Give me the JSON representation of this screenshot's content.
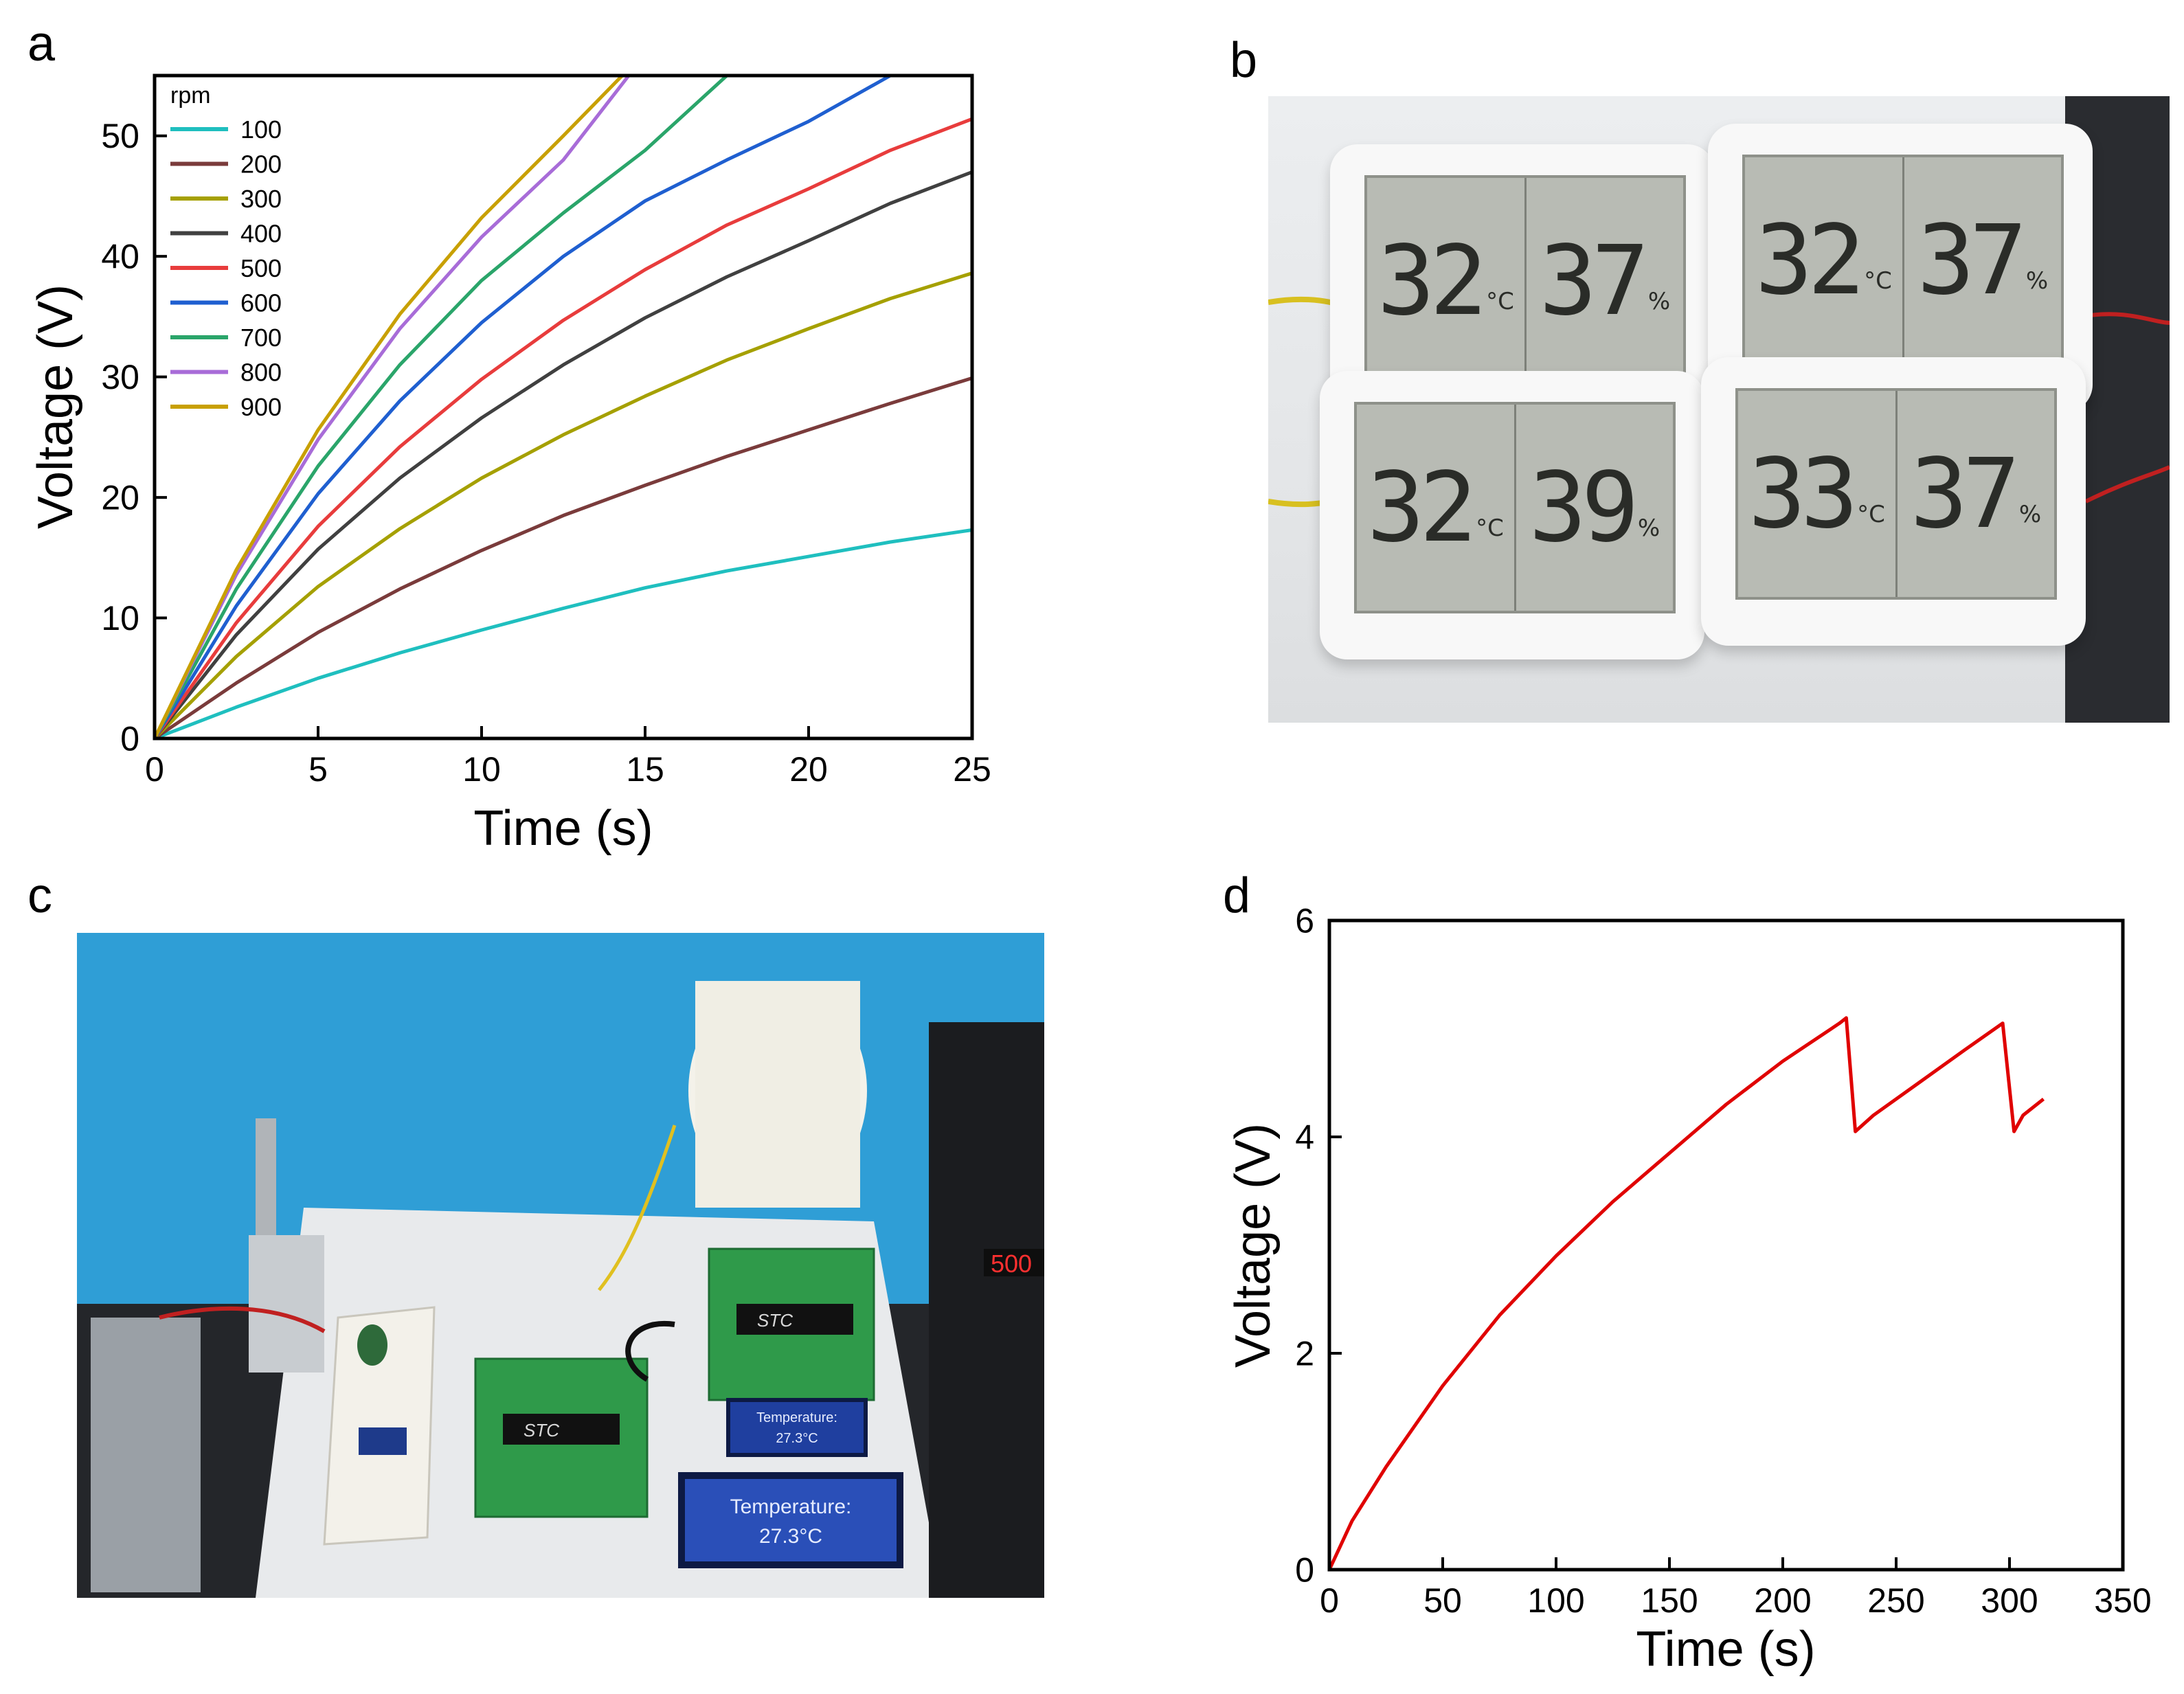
{
  "panels": {
    "a": {
      "letter": "a"
    },
    "b": {
      "letter": "b"
    },
    "c": {
      "letter": "c"
    },
    "d": {
      "letter": "d"
    }
  },
  "photo_b": {
    "units": {
      "temp": "°C",
      "hum": "%"
    },
    "monitors": [
      {
        "temp": "32",
        "hum": "37"
      },
      {
        "temp": "32",
        "hum": "37"
      },
      {
        "temp": "32",
        "hum": "39"
      },
      {
        "temp": "33",
        "hum": "37"
      }
    ]
  },
  "photo_c": {
    "lcd_small": {
      "line1": "Temperature:",
      "line2": "27.3°C"
    },
    "lcd_large": {
      "line1": "Temperature:",
      "line2": "27.3°C"
    },
    "chip_label": "STC",
    "display_digits": "500"
  },
  "chart_data": [
    {
      "type": "line",
      "xlabel": "Time (s)",
      "ylabel": "Voltage (V)",
      "xlim": [
        0,
        25
      ],
      "ylim": [
        0,
        55
      ],
      "xticks": [
        0,
        5,
        10,
        15,
        20,
        25
      ],
      "yticks": [
        0,
        10,
        20,
        30,
        40,
        50
      ],
      "legend_title": "rpm",
      "legend_position": "top-left",
      "series": [
        {
          "name": "100",
          "color": "#1fbfbf",
          "points": [
            [
              0,
              0
            ],
            [
              2.5,
              2.6
            ],
            [
              5,
              5.0
            ],
            [
              7.5,
              7.1
            ],
            [
              10,
              9.0
            ],
            [
              12.5,
              10.8
            ],
            [
              15,
              12.5
            ],
            [
              17.5,
              13.9
            ],
            [
              20,
              15.1
            ],
            [
              22.5,
              16.3
            ],
            [
              25,
              17.3
            ]
          ]
        },
        {
          "name": "200",
          "color": "#7a3b3b",
          "points": [
            [
              0,
              0
            ],
            [
              2.5,
              4.6
            ],
            [
              5,
              8.8
            ],
            [
              7.5,
              12.4
            ],
            [
              10,
              15.6
            ],
            [
              12.5,
              18.5
            ],
            [
              15,
              21.0
            ],
            [
              17.5,
              23.4
            ],
            [
              20,
              25.6
            ],
            [
              22.5,
              27.8
            ],
            [
              25,
              29.9
            ]
          ]
        },
        {
          "name": "300",
          "color": "#a5a000",
          "points": [
            [
              0,
              0
            ],
            [
              2.5,
              6.8
            ],
            [
              5,
              12.6
            ],
            [
              7.5,
              17.4
            ],
            [
              10,
              21.6
            ],
            [
              12.5,
              25.2
            ],
            [
              15,
              28.4
            ],
            [
              17.5,
              31.4
            ],
            [
              20,
              34.0
            ],
            [
              22.5,
              36.5
            ],
            [
              25,
              38.6
            ]
          ]
        },
        {
          "name": "400",
          "color": "#404040",
          "points": [
            [
              0,
              0
            ],
            [
              2.5,
              8.6
            ],
            [
              5,
              15.7
            ],
            [
              7.5,
              21.6
            ],
            [
              10,
              26.6
            ],
            [
              12.5,
              31.0
            ],
            [
              15,
              34.9
            ],
            [
              17.5,
              38.3
            ],
            [
              20,
              41.3
            ],
            [
              22.5,
              44.4
            ],
            [
              25,
              47.0
            ]
          ]
        },
        {
          "name": "500",
          "color": "#e83c3c",
          "points": [
            [
              0,
              0
            ],
            [
              2.5,
              9.6
            ],
            [
              5,
              17.6
            ],
            [
              7.5,
              24.2
            ],
            [
              10,
              29.8
            ],
            [
              12.5,
              34.7
            ],
            [
              15,
              38.9
            ],
            [
              17.5,
              42.6
            ],
            [
              20,
              45.6
            ],
            [
              22.5,
              48.8
            ],
            [
              25,
              51.4
            ]
          ]
        },
        {
          "name": "600",
          "color": "#1f5fd0",
          "points": [
            [
              0,
              0
            ],
            [
              2.5,
              11.0
            ],
            [
              5,
              20.3
            ],
            [
              7.5,
              28.0
            ],
            [
              10,
              34.5
            ],
            [
              12.5,
              40.0
            ],
            [
              15,
              44.6
            ],
            [
              17.5,
              48.0
            ],
            [
              20,
              51.2
            ],
            [
              22.5,
              55.0
            ]
          ]
        },
        {
          "name": "700",
          "color": "#2aa56a",
          "points": [
            [
              0,
              0
            ],
            [
              2.5,
              12.4
            ],
            [
              5,
              22.6
            ],
            [
              7.5,
              31.0
            ],
            [
              10,
              38.0
            ],
            [
              12.5,
              43.6
            ],
            [
              15,
              48.8
            ],
            [
              17.5,
              55.0
            ]
          ]
        },
        {
          "name": "800",
          "color": "#a86cd8",
          "points": [
            [
              0,
              0
            ],
            [
              2.5,
              13.6
            ],
            [
              5,
              24.8
            ],
            [
              7.5,
              34.0
            ],
            [
              10,
              41.6
            ],
            [
              12.5,
              48.0
            ],
            [
              14.5,
              55.0
            ]
          ]
        },
        {
          "name": "900",
          "color": "#c8a000",
          "points": [
            [
              0,
              0
            ],
            [
              2.5,
              14.0
            ],
            [
              5,
              25.6
            ],
            [
              7.5,
              35.2
            ],
            [
              10,
              43.2
            ],
            [
              12.5,
              50.0
            ],
            [
              14.3,
              55.0
            ]
          ]
        }
      ]
    },
    {
      "type": "line",
      "xlabel": "Time (s)",
      "ylabel": "Voltage (V)",
      "xlim": [
        0,
        350
      ],
      "ylim": [
        0,
        6
      ],
      "xticks": [
        0,
        50,
        100,
        150,
        200,
        250,
        300,
        350
      ],
      "yticks": [
        0,
        2,
        4,
        6
      ],
      "series": [
        {
          "color": "#e00000",
          "points": [
            [
              0,
              0
            ],
            [
              10,
              0.45
            ],
            [
              25,
              0.95
            ],
            [
              50,
              1.7
            ],
            [
              75,
              2.35
            ],
            [
              100,
              2.9
            ],
            [
              125,
              3.4
            ],
            [
              150,
              3.85
            ],
            [
              175,
              4.3
            ],
            [
              200,
              4.7
            ],
            [
              225,
              5.05
            ],
            [
              228,
              5.1
            ],
            [
              232,
              4.05
            ],
            [
              240,
              4.2
            ],
            [
              260,
              4.5
            ],
            [
              280,
              4.8
            ],
            [
              297,
              5.05
            ],
            [
              302,
              4.05
            ],
            [
              306,
              4.2
            ],
            [
              315,
              4.35
            ]
          ]
        }
      ]
    }
  ]
}
